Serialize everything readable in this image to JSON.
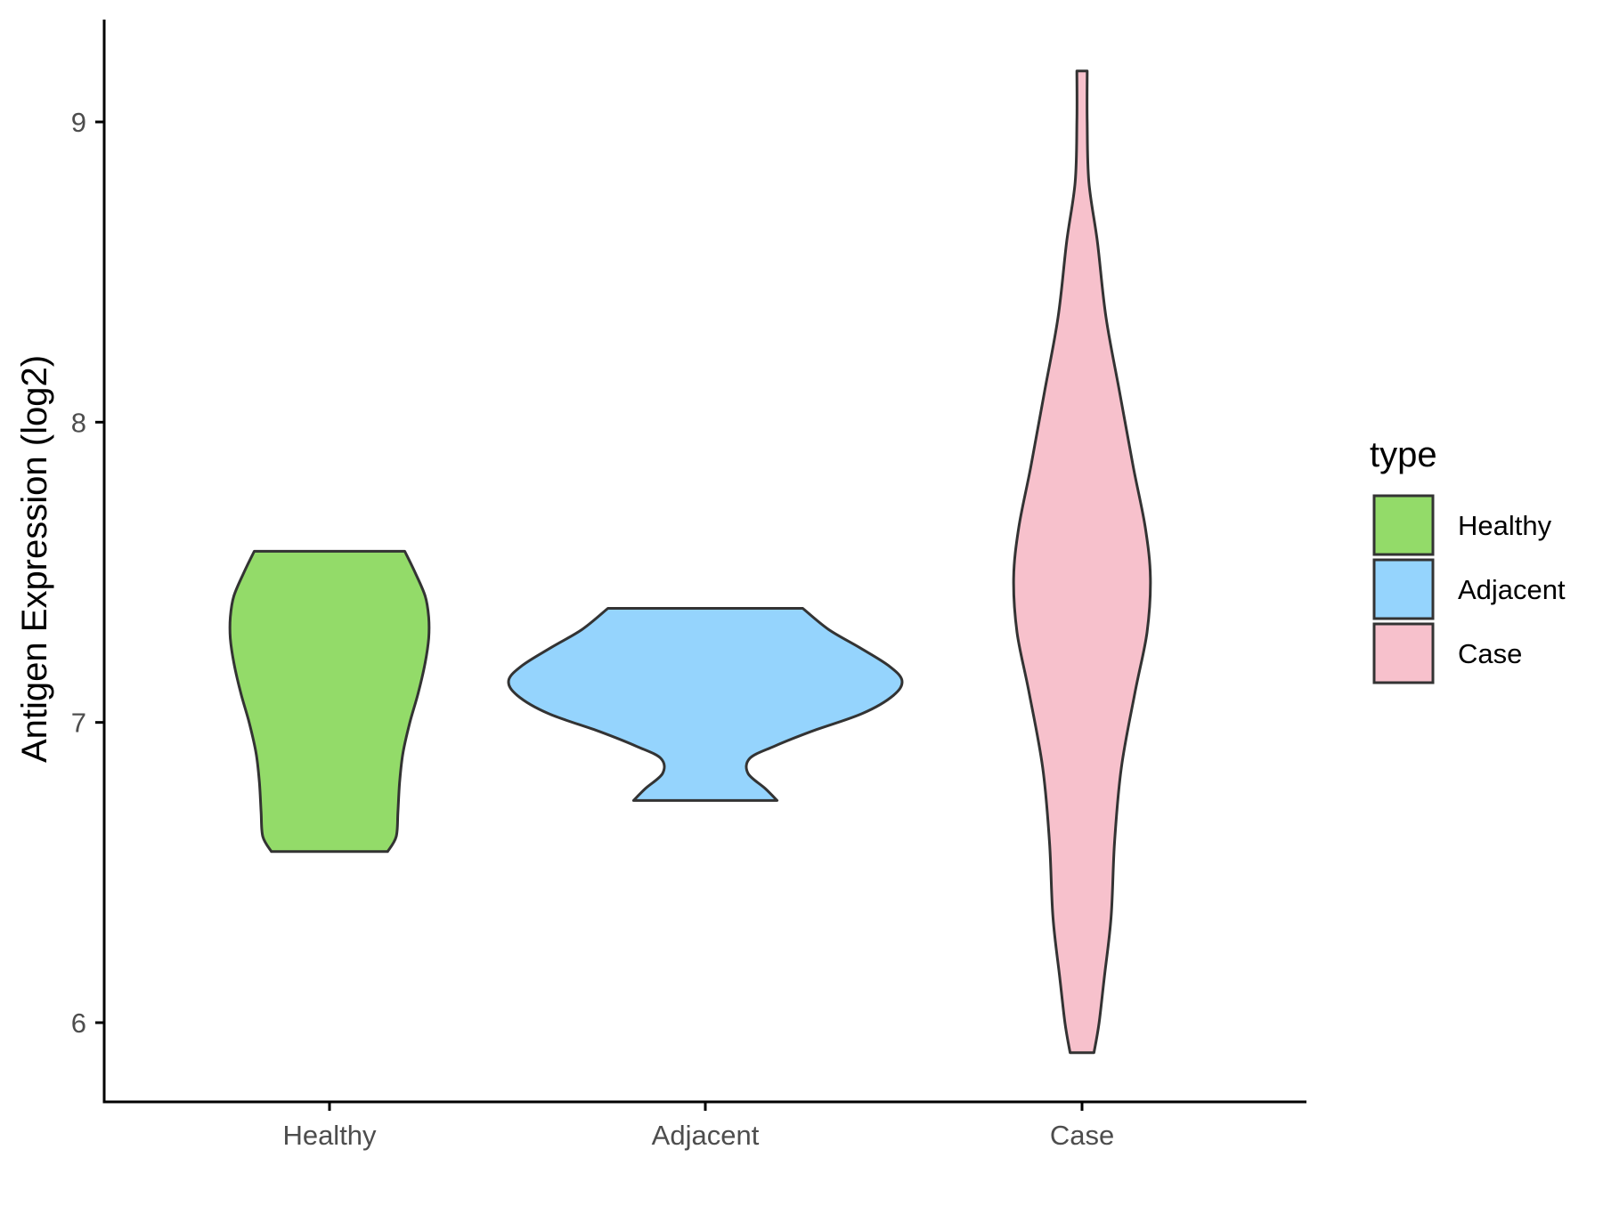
{
  "chart_data": {
    "type": "violin",
    "xlabel": "",
    "ylabel": "Antigen Expression (log2)",
    "categories": [
      "Healthy",
      "Adjacent",
      "Case"
    ],
    "y_ticks": [
      6,
      7,
      8,
      9
    ],
    "ylim": [
      5.75,
      9.35
    ],
    "grid": false,
    "legend": {
      "title": "type",
      "position": "right",
      "entries": [
        {
          "label": "Healthy",
          "color": "#93DB69"
        },
        {
          "label": "Adjacent",
          "color": "#95D4FD"
        },
        {
          "label": "Case",
          "color": "#F7C1CC"
        }
      ]
    },
    "series": [
      {
        "category": "Healthy",
        "color": "#93DB69",
        "min": 6.57,
        "max": 7.57,
        "density_profile": [
          [
            6.57,
            0.34
          ],
          [
            6.62,
            0.39
          ],
          [
            6.7,
            0.4
          ],
          [
            6.8,
            0.41
          ],
          [
            6.9,
            0.43
          ],
          [
            7.0,
            0.47
          ],
          [
            7.1,
            0.52
          ],
          [
            7.2,
            0.56
          ],
          [
            7.28,
            0.58
          ],
          [
            7.35,
            0.58
          ],
          [
            7.42,
            0.56
          ],
          [
            7.5,
            0.5
          ],
          [
            7.57,
            0.44
          ]
        ]
      },
      {
        "category": "Adjacent",
        "color": "#95D4FD",
        "min": 6.74,
        "max": 7.38,
        "density_profile": [
          [
            6.74,
            0.42
          ],
          [
            6.78,
            0.35
          ],
          [
            6.83,
            0.25
          ],
          [
            6.88,
            0.26
          ],
          [
            6.92,
            0.4
          ],
          [
            6.97,
            0.62
          ],
          [
            7.03,
            0.92
          ],
          [
            7.09,
            1.1
          ],
          [
            7.14,
            1.15
          ],
          [
            7.19,
            1.07
          ],
          [
            7.25,
            0.9
          ],
          [
            7.31,
            0.72
          ],
          [
            7.38,
            0.57
          ]
        ]
      },
      {
        "category": "Case",
        "color": "#F7C1CC",
        "min": 5.9,
        "max": 9.17,
        "density_profile": [
          [
            5.9,
            0.07
          ],
          [
            6.0,
            0.1
          ],
          [
            6.15,
            0.13
          ],
          [
            6.35,
            0.17
          ],
          [
            6.6,
            0.19
          ],
          [
            6.85,
            0.23
          ],
          [
            7.1,
            0.31
          ],
          [
            7.3,
            0.38
          ],
          [
            7.48,
            0.4
          ],
          [
            7.65,
            0.37
          ],
          [
            7.85,
            0.3
          ],
          [
            8.1,
            0.22
          ],
          [
            8.35,
            0.14
          ],
          [
            8.6,
            0.09
          ],
          [
            8.8,
            0.04
          ],
          [
            9.0,
            0.03
          ],
          [
            9.17,
            0.03
          ]
        ]
      }
    ]
  }
}
